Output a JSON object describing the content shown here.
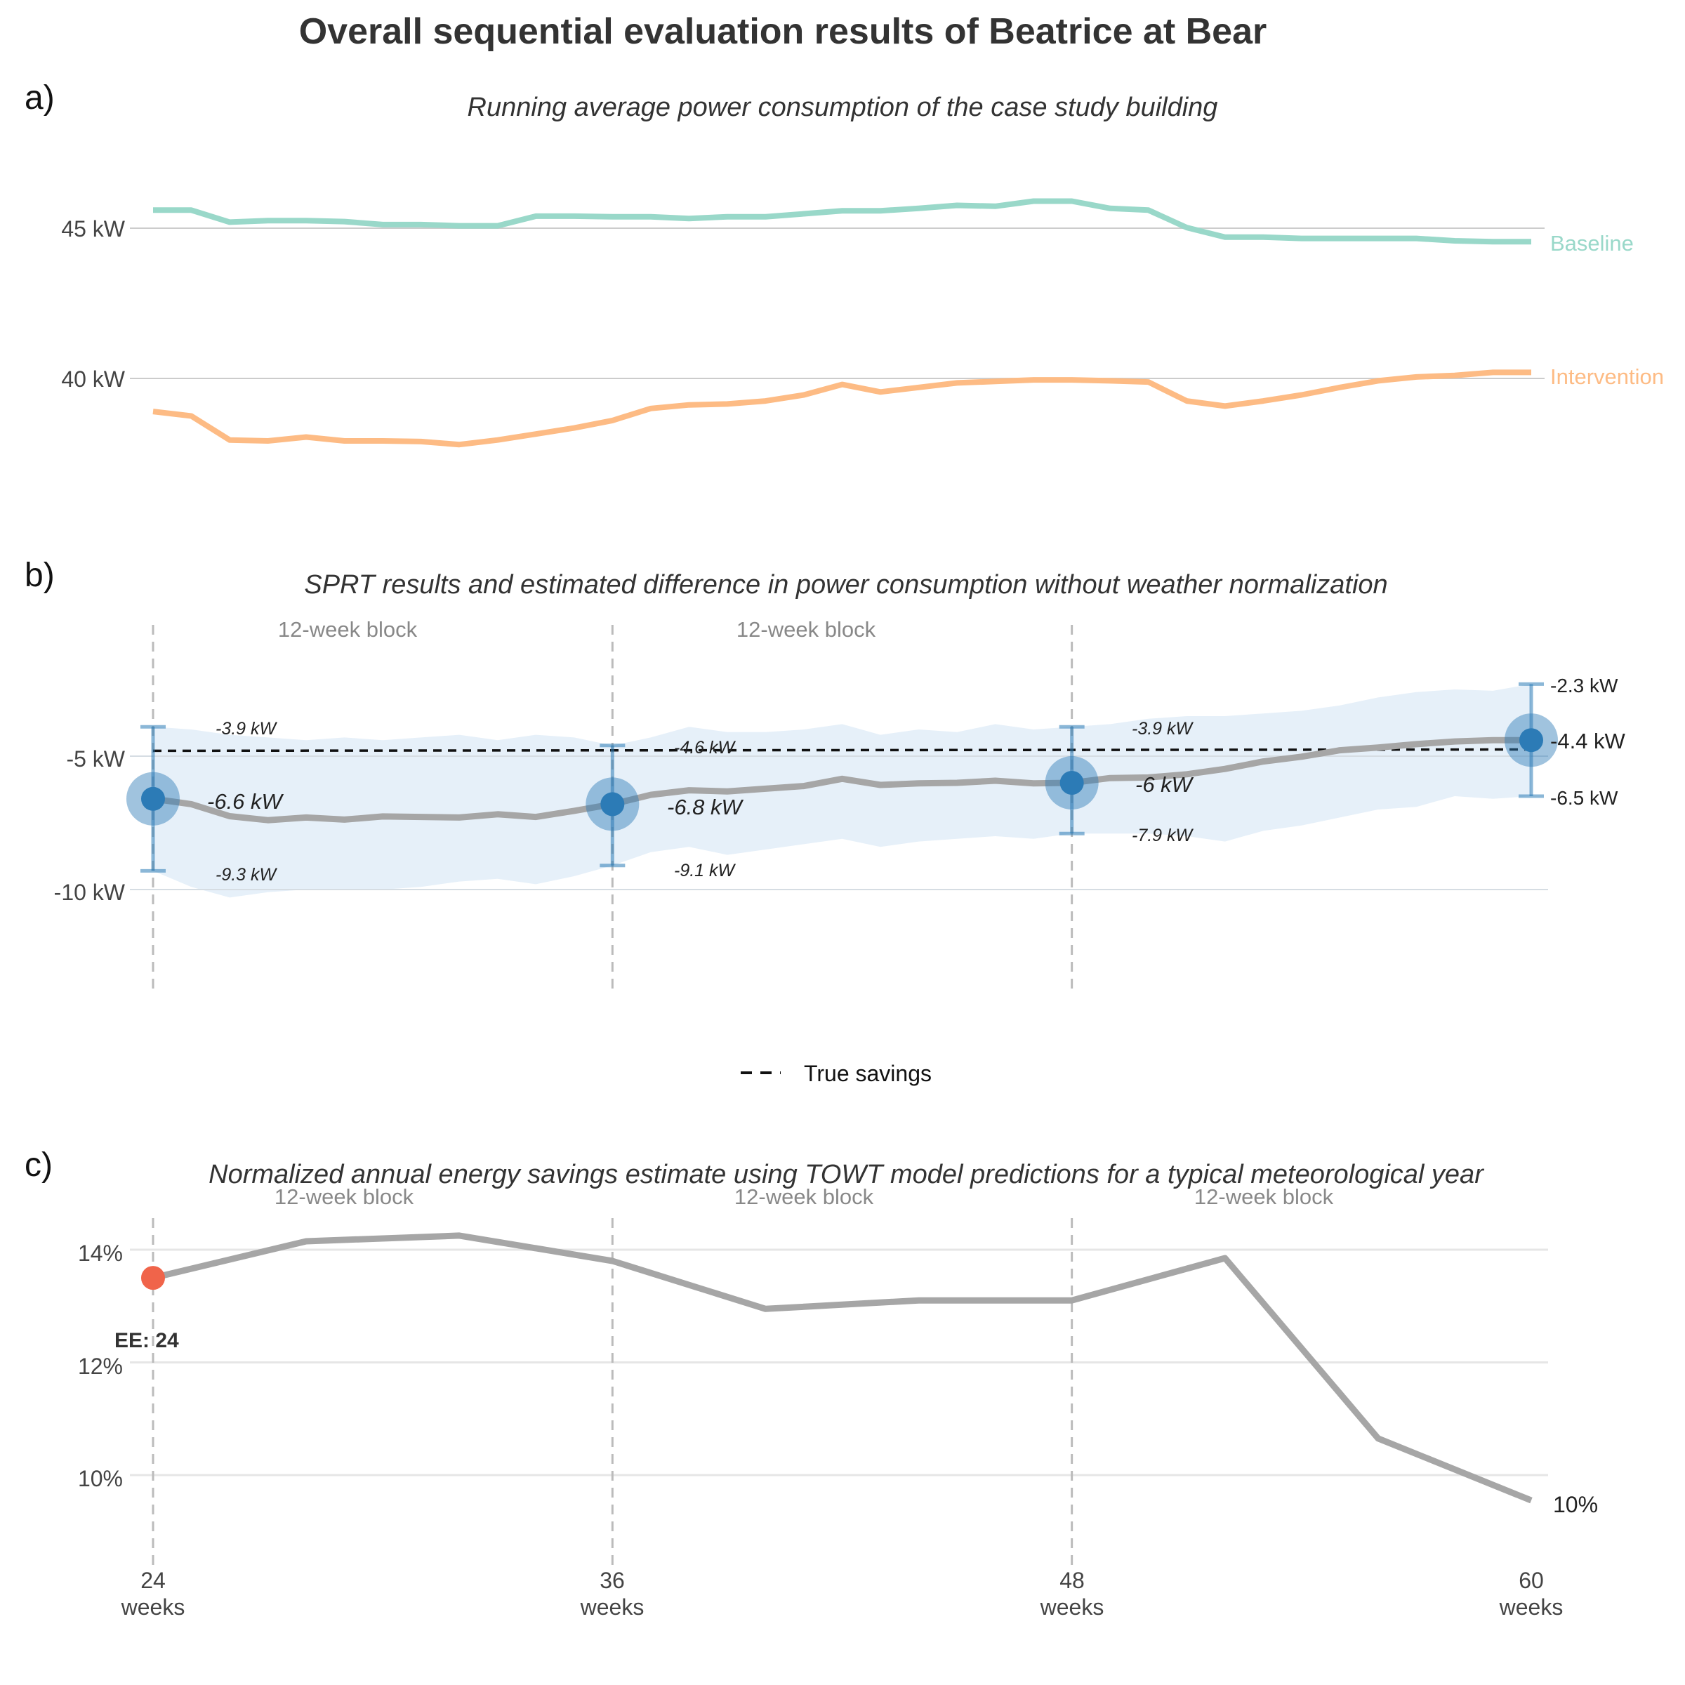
{
  "title": "Overall sequential evaluation results of Beatrice at Bear",
  "panel_a": {
    "label": "a)",
    "subtitle": "Running average power consumption of the case study building",
    "y_ticks": [
      "45 kW",
      "40 kW"
    ],
    "series_labels": {
      "baseline": "Baseline",
      "intervention": "Intervention"
    }
  },
  "panel_b": {
    "label": "b)",
    "subtitle": "SPRT results and estimated difference in power consumption without weather normalization",
    "y_ticks": [
      "-5 kW",
      "-10 kW"
    ],
    "block_labels": [
      "12-week block",
      "12-week block"
    ],
    "legend_label": "True savings",
    "checkpoints": [
      {
        "upper": "-3.9 kW",
        "estimate": "-6.6 kW",
        "lower": "-9.3 kW"
      },
      {
        "upper": "-4.6 kW",
        "estimate": "-6.8 kW",
        "lower": "-9.1 kW"
      },
      {
        "upper": "-3.9 kW",
        "estimate": "-6 kW",
        "lower": "-7.9 kW"
      },
      {
        "upper": "-2.3 kW",
        "estimate": "-4.4 kW",
        "lower": "-6.5 kW"
      }
    ]
  },
  "panel_c": {
    "label": "c)",
    "subtitle": "Normalized annual energy savings estimate using TOWT model predictions for a typical meteorological year",
    "y_ticks": [
      "14%",
      "12%",
      "10%"
    ],
    "block_labels": [
      "12-week block",
      "12-week block",
      "12-week block"
    ],
    "ee_label": "EE: 24",
    "end_label": "10%"
  },
  "x_axis": {
    "ticks": [
      {
        "value": "24",
        "unit": "weeks"
      },
      {
        "value": "36",
        "unit": "weeks"
      },
      {
        "value": "48",
        "unit": "weeks"
      },
      {
        "value": "60",
        "unit": "weeks"
      }
    ]
  },
  "colors": {
    "baseline": "#99d8c9",
    "intervention": "#fdbb84",
    "estimate_line": "#a6a6a6",
    "ci_band": "#e6f0f9",
    "marker": "#2c7bb6",
    "true_savings": "#111111",
    "early_exit": "#f0644a"
  },
  "chart_data": [
    {
      "type": "line",
      "title": "Running average power consumption of the case study building",
      "x_unit": "weeks",
      "xlim": [
        24,
        60
      ],
      "ylim": [
        36,
        50
      ],
      "y_unit": "kW",
      "grid": true,
      "x": [
        24,
        25,
        26,
        27,
        28,
        29,
        30,
        31,
        32,
        33,
        34,
        35,
        36,
        37,
        38,
        39,
        40,
        41,
        42,
        43,
        44,
        45,
        46,
        47,
        48,
        49,
        50,
        51,
        52,
        53,
        54,
        55,
        56,
        57,
        58,
        59,
        60
      ],
      "series": [
        {
          "name": "Baseline",
          "values": [
            45.6,
            45.6,
            45.2,
            45.25,
            45.25,
            45.22,
            45.12,
            45.12,
            45.08,
            45.08,
            45.4,
            45.4,
            45.38,
            45.38,
            45.32,
            45.38,
            45.38,
            45.48,
            45.58,
            45.58,
            45.66,
            45.76,
            45.73,
            45.9,
            45.9,
            45.66,
            45.6,
            45.02,
            44.7,
            44.7,
            44.66,
            44.66,
            44.66,
            44.66,
            44.58,
            44.55,
            44.55
          ]
        },
        {
          "name": "Intervention",
          "values": [
            38.9,
            38.75,
            37.95,
            37.92,
            38.05,
            37.92,
            37.92,
            37.9,
            37.8,
            37.95,
            38.15,
            38.35,
            38.6,
            39,
            39.12,
            39.15,
            39.25,
            39.45,
            39.8,
            39.55,
            39.7,
            39.85,
            39.9,
            39.95,
            39.95,
            39.92,
            39.88,
            39.25,
            39.08,
            39.25,
            39.45,
            39.7,
            39.92,
            40.05,
            40.1,
            40.2,
            40.2
          ]
        }
      ]
    },
    {
      "type": "line",
      "title": "SPRT results and estimated difference in power consumption without weather normalization",
      "x_unit": "weeks",
      "xlim": [
        24,
        60
      ],
      "ylim": [
        -13.8,
        -0.5
      ],
      "y_unit": "kW",
      "grid": true,
      "x": [
        24,
        25,
        26,
        27,
        28,
        29,
        30,
        31,
        32,
        33,
        34,
        35,
        36,
        37,
        38,
        39,
        40,
        41,
        42,
        43,
        44,
        45,
        46,
        47,
        48,
        49,
        50,
        51,
        52,
        53,
        54,
        55,
        56,
        57,
        58,
        59,
        60
      ],
      "estimate": [
        -6.6,
        -6.8,
        -7.25,
        -7.4,
        -7.3,
        -7.38,
        -7.26,
        -7.28,
        -7.3,
        -7.18,
        -7.28,
        -7.05,
        -6.8,
        -6.45,
        -6.28,
        -6.32,
        -6.22,
        -6.12,
        -5.85,
        -6.08,
        -6.02,
        -6,
        -5.92,
        -6.02,
        -6,
        -5.82,
        -5.8,
        -5.68,
        -5.48,
        -5.2,
        -5.02,
        -4.78,
        -4.68,
        -4.55,
        -4.45,
        -4.4,
        -4.4
      ],
      "ci_upper": [
        -3.9,
        -4,
        -4.2,
        -4.3,
        -4.4,
        -4.3,
        -4.4,
        -4.3,
        -4.2,
        -4.4,
        -4.2,
        -4.3,
        -4.6,
        -4.3,
        -3.9,
        -4.1,
        -4.1,
        -4,
        -3.8,
        -4.2,
        -4,
        -4.1,
        -3.8,
        -4,
        -3.9,
        -3.8,
        -3.6,
        -3.5,
        -3.5,
        -3.4,
        -3.3,
        -3.1,
        -2.8,
        -2.6,
        -2.5,
        -2.55,
        -2.3
      ],
      "ci_lower": [
        -9.3,
        -9.9,
        -10.3,
        -10.1,
        -10,
        -10,
        -10,
        -9.9,
        -9.7,
        -9.6,
        -9.8,
        -9.5,
        -9.1,
        -8.6,
        -8.4,
        -8.7,
        -8.5,
        -8.3,
        -8.1,
        -8.4,
        -8.2,
        -8.1,
        -8,
        -8.1,
        -7.9,
        -7.9,
        -7.9,
        -8,
        -8.2,
        -7.8,
        -7.6,
        -7.3,
        -7,
        -6.9,
        -6.5,
        -6.6,
        -6.5
      ],
      "true_savings": [
        -4.8,
        -4.75
      ],
      "checkpoints": [
        {
          "week": 24,
          "estimate": -6.6,
          "lower": -9.3,
          "upper": -3.9
        },
        {
          "week": 36,
          "estimate": -6.8,
          "lower": -9.1,
          "upper": -4.6
        },
        {
          "week": 48,
          "estimate": -6.0,
          "lower": -7.9,
          "upper": -3.9
        },
        {
          "week": 60,
          "estimate": -4.4,
          "lower": -6.5,
          "upper": -2.3
        }
      ],
      "legend": [
        "True savings"
      ],
      "legend_position": "bottom"
    },
    {
      "type": "line",
      "title": "Normalized annual energy savings estimate using TOWT model predictions for a typical meteorological year",
      "x_unit": "weeks",
      "xlim": [
        24,
        60
      ],
      "ylim": [
        8.1,
        14.8
      ],
      "y_unit": "%",
      "grid": true,
      "x": [
        24,
        28,
        32,
        36,
        40,
        44,
        48,
        52,
        56,
        60
      ],
      "values": [
        13.5,
        14.15,
        14.25,
        13.8,
        12.95,
        13.1,
        13.1,
        13.85,
        10.65,
        9.55
      ],
      "early_exit": {
        "week": 24,
        "value": 13.5
      }
    }
  ]
}
